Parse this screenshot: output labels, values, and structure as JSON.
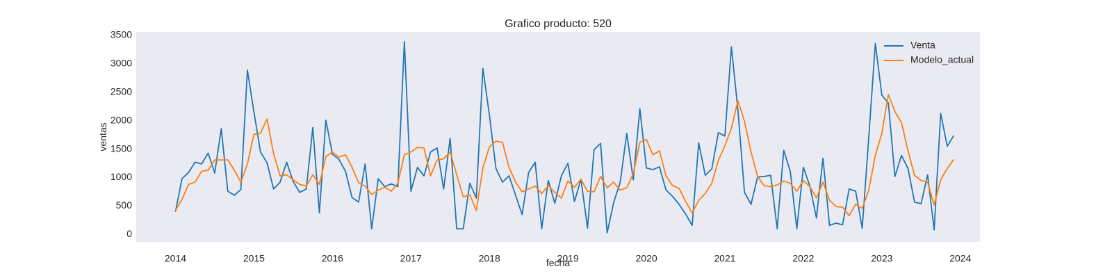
{
  "chart_data": {
    "type": "line",
    "title": "Grafico producto: 520",
    "xlabel": "fecha",
    "ylabel": "ventas",
    "x_start": "2014-01",
    "x_end": "2023-12",
    "x_ticks": [
      "2014",
      "2015",
      "2016",
      "2017",
      "2018",
      "2019",
      "2020",
      "2021",
      "2022",
      "2023",
      "2024"
    ],
    "y_ticks": [
      0,
      500,
      1000,
      1500,
      2000,
      2500,
      3000,
      3500
    ],
    "xlim": [
      "2013-07",
      "2024-04"
    ],
    "ylim": [
      -130,
      3560
    ],
    "grid": false,
    "background": "#eaeaf2",
    "legend_position": "upper-right",
    "series": [
      {
        "name": "Venta",
        "color": "#1f77b4",
        "values": [
          400,
          980,
          1090,
          1270,
          1240,
          1430,
          1080,
          1860,
          760,
          690,
          790,
          2890,
          2150,
          1450,
          1260,
          800,
          920,
          1270,
          930,
          740,
          800,
          1880,
          380,
          2010,
          1410,
          1320,
          1110,
          650,
          570,
          1240,
          100,
          980,
          840,
          890,
          840,
          3390,
          760,
          1180,
          1030,
          1450,
          1520,
          800,
          1690,
          100,
          100,
          900,
          640,
          2920,
          2100,
          1160,
          920,
          1030,
          690,
          350,
          1090,
          1270,
          100,
          950,
          550,
          1030,
          1250,
          580,
          970,
          110,
          1490,
          1600,
          30,
          560,
          920,
          1780,
          960,
          2210,
          1170,
          1140,
          1190,
          780,
          670,
          530,
          360,
          160,
          1610,
          1040,
          1150,
          1790,
          1730,
          3300,
          2180,
          740,
          530,
          1010,
          1020,
          1040,
          100,
          1480,
          1110,
          100,
          1180,
          850,
          290,
          1340,
          160,
          200,
          170,
          800,
          760,
          110,
          1700,
          3360,
          2450,
          2310,
          1020,
          1390,
          1160,
          570,
          540,
          1050,
          80,
          2130,
          1550,
          1740
        ]
      },
      {
        "name": "Modelo_actual",
        "color": "#ff7f0e",
        "values": [
          420,
          620,
          880,
          920,
          1110,
          1130,
          1310,
          1310,
          1310,
          1130,
          920,
          1240,
          1760,
          1780,
          2030,
          1420,
          1030,
          1050,
          960,
          880,
          850,
          1050,
          880,
          1370,
          1450,
          1360,
          1400,
          1180,
          910,
          850,
          700,
          780,
          830,
          760,
          900,
          1400,
          1450,
          1530,
          1520,
          1030,
          1310,
          1330,
          1450,
          1050,
          660,
          700,
          420,
          1170,
          1540,
          1640,
          1620,
          1180,
          920,
          750,
          800,
          850,
          720,
          860,
          740,
          640,
          940,
          830,
          970,
          760,
          750,
          1020,
          820,
          920,
          780,
          820,
          1070,
          1620,
          1670,
          1400,
          1470,
          1030,
          860,
          810,
          580,
          380,
          600,
          720,
          900,
          1300,
          1560,
          1870,
          2350,
          1990,
          1450,
          1020,
          860,
          840,
          870,
          940,
          900,
          760,
          950,
          840,
          640,
          920,
          600,
          490,
          480,
          330,
          530,
          460,
          780,
          1390,
          1780,
          2460,
          2160,
          1970,
          1470,
          1040,
          950,
          920,
          520,
          960,
          1160,
          1320
        ]
      }
    ]
  }
}
